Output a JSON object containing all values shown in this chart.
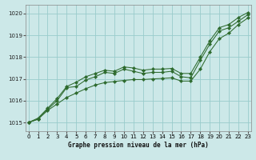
{
  "bg_color": "#cce8e8",
  "grid_color": "#99cccc",
  "line_color": "#2d6a2d",
  "xlabel": "Graphe pression niveau de la mer (hPa)",
  "ylim": [
    1014.6,
    1020.4
  ],
  "xlim": [
    -0.3,
    23.3
  ],
  "yticks": [
    1015,
    1016,
    1017,
    1018,
    1019,
    1020
  ],
  "xticks": [
    0,
    1,
    2,
    3,
    4,
    5,
    6,
    7,
    8,
    9,
    10,
    11,
    12,
    13,
    14,
    15,
    16,
    17,
    18,
    19,
    20,
    21,
    22,
    23
  ],
  "x": [
    0,
    1,
    2,
    3,
    4,
    5,
    6,
    7,
    8,
    9,
    10,
    11,
    12,
    13,
    14,
    15,
    16,
    17,
    18,
    19,
    20,
    21,
    22,
    23
  ],
  "y_straight_low": [
    1015.0,
    1015.15,
    1015.55,
    1015.85,
    1016.15,
    1016.35,
    1016.55,
    1016.72,
    1016.83,
    1016.88,
    1016.93,
    1016.97,
    1016.97,
    1017.0,
    1017.02,
    1017.05,
    1016.9,
    1016.9,
    1017.45,
    1018.25,
    1018.85,
    1019.1,
    1019.5,
    1019.8
  ],
  "y_zigzag": [
    1015.0,
    1015.15,
    1015.6,
    1016.0,
    1016.6,
    1016.65,
    1016.95,
    1017.1,
    1017.3,
    1017.25,
    1017.45,
    1017.35,
    1017.25,
    1017.3,
    1017.3,
    1017.35,
    1017.1,
    1017.05,
    1017.85,
    1018.6,
    1019.2,
    1019.35,
    1019.65,
    1019.95
  ],
  "y_straight_high": [
    1015.0,
    1015.2,
    1015.65,
    1016.1,
    1016.65,
    1016.85,
    1017.1,
    1017.25,
    1017.4,
    1017.35,
    1017.55,
    1017.5,
    1017.4,
    1017.45,
    1017.45,
    1017.48,
    1017.25,
    1017.25,
    1018.0,
    1018.75,
    1019.35,
    1019.5,
    1019.82,
    1020.05
  ]
}
